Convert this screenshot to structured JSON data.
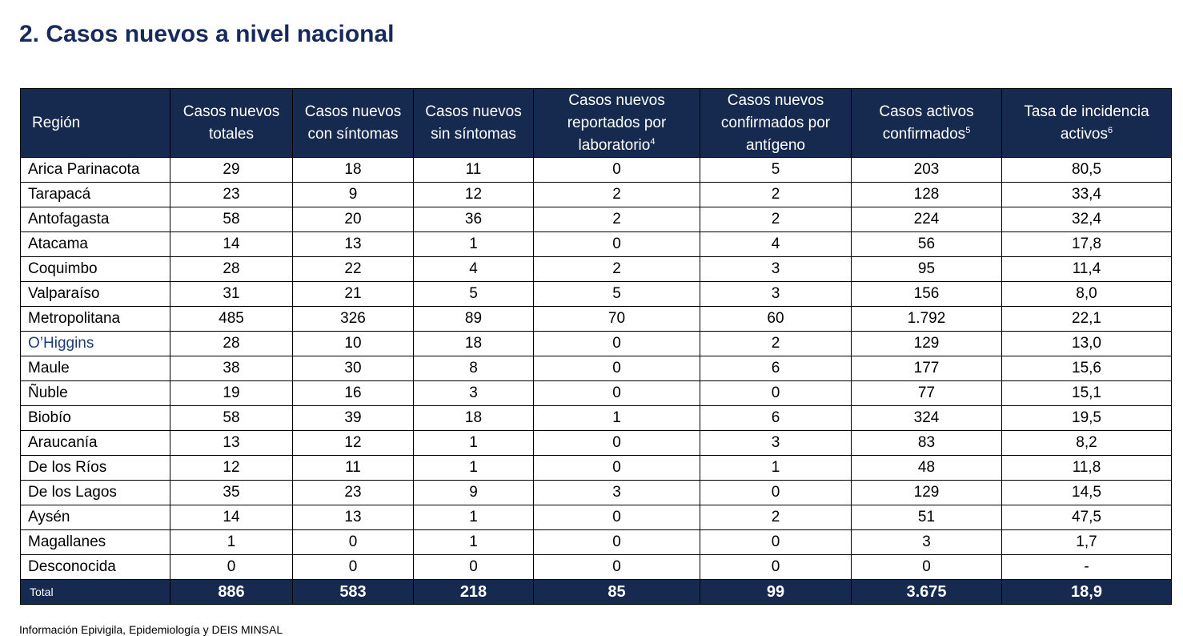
{
  "page": {
    "title": "2. Casos nuevos a nivel nacional",
    "source_note": "Información Epivigila, Epidemiología y DEIS MINSAL"
  },
  "table": {
    "headers": [
      {
        "text": "Región",
        "sup": ""
      },
      {
        "text": "Casos nuevos totales",
        "sup": ""
      },
      {
        "text": "Casos nuevos con síntomas",
        "sup": ""
      },
      {
        "text": "Casos nuevos sin síntomas",
        "sup": ""
      },
      {
        "text": "Casos nuevos reportados por laboratorio",
        "sup": "4"
      },
      {
        "text": "Casos nuevos confirmados por antígeno",
        "sup": ""
      },
      {
        "text": "Casos activos confirmados",
        "sup": "5"
      },
      {
        "text": "Tasa de incidencia activos",
        "sup": "6"
      }
    ],
    "rows": [
      [
        "Arica Parinacota",
        "29",
        "18",
        "11",
        "0",
        "5",
        "203",
        "80,5"
      ],
      [
        "Tarapacá",
        "23",
        "9",
        "12",
        "2",
        "2",
        "128",
        "33,4"
      ],
      [
        "Antofagasta",
        "58",
        "20",
        "36",
        "2",
        "2",
        "224",
        "32,4"
      ],
      [
        "Atacama",
        "14",
        "13",
        "1",
        "0",
        "4",
        "56",
        "17,8"
      ],
      [
        "Coquimbo",
        "28",
        "22",
        "4",
        "2",
        "3",
        "95",
        "11,4"
      ],
      [
        "Valparaíso",
        "31",
        "21",
        "5",
        "5",
        "3",
        "156",
        "8,0"
      ],
      [
        "Metropolitana",
        "485",
        "326",
        "89",
        "70",
        "60",
        "1.792",
        "22,1"
      ],
      [
        "O’Higgins",
        "28",
        "10",
        "18",
        "0",
        "2",
        "129",
        "13,0"
      ],
      [
        "Maule",
        "38",
        "30",
        "8",
        "0",
        "6",
        "177",
        "15,6"
      ],
      [
        "Ñuble",
        "19",
        "16",
        "3",
        "0",
        "0",
        "77",
        "15,1"
      ],
      [
        "Biobío",
        "58",
        "39",
        "18",
        "1",
        "6",
        "324",
        "19,5"
      ],
      [
        "Araucanía",
        "13",
        "12",
        "1",
        "0",
        "3",
        "83",
        "8,2"
      ],
      [
        "De los Ríos",
        "12",
        "11",
        "1",
        "0",
        "1",
        "48",
        "11,8"
      ],
      [
        "De los Lagos",
        "35",
        "23",
        "9",
        "3",
        "0",
        "129",
        "14,5"
      ],
      [
        "Aysén",
        "14",
        "13",
        "1",
        "0",
        "2",
        "51",
        "47,5"
      ],
      [
        "Magallanes",
        "1",
        "0",
        "1",
        "0",
        "0",
        "3",
        "1,7"
      ],
      [
        "Desconocida",
        "0",
        "0",
        "0",
        "0",
        "0",
        "0",
        "-"
      ]
    ],
    "total": [
      "Total",
      "886",
      "583",
      "218",
      "85",
      "99",
      "3.675",
      "18,9"
    ]
  },
  "colors": {
    "header_bg": "#16294f",
    "title": "#172a5b",
    "link_text": "#1f3b78"
  }
}
